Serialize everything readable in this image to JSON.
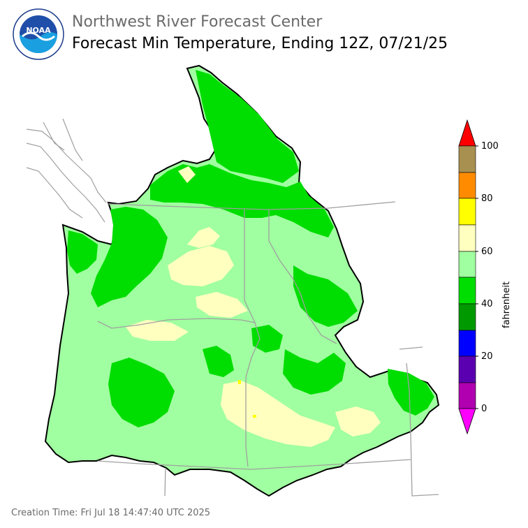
{
  "header": {
    "agency": "Northwest River Forecast Center",
    "product": "Forecast Min Temperature, Ending 12Z, 07/21/25"
  },
  "logo": {
    "text": "NOAA",
    "ring_text": "NATIONAL OCEANIC AND ATMOSPHERIC ADMINISTRATION · U.S. DEPARTMENT OF COMMERCE"
  },
  "footer": {
    "creation_time": "Creation Time: Fri Jul 18 14:47:40 UTC 2025"
  },
  "colorbar": {
    "units": "fahrenheit",
    "ticks": [
      "100",
      "80",
      "60",
      "40",
      "20",
      "0"
    ],
    "bins": [
      {
        "range": "above 100",
        "color": "#ff0000"
      },
      {
        "range": "90-100",
        "color": "#a89050"
      },
      {
        "range": "80-90",
        "color": "#ff8c00"
      },
      {
        "range": "70-80",
        "color": "#ffff00"
      },
      {
        "range": "60-70",
        "color": "#ffffc0"
      },
      {
        "range": "50-60",
        "color": "#a0ff a0"
      },
      {
        "range": "40-50",
        "color": "#00dd00"
      },
      {
        "range": "30-40",
        "color": "#009900"
      },
      {
        "range": "20-30",
        "color": "#0000ff"
      },
      {
        "range": "10-20",
        "color": "#5a00b0"
      },
      {
        "range": "0-10",
        "color": "#b000b0"
      },
      {
        "range": "below 0",
        "color": "#ff00ff"
      }
    ]
  },
  "map": {
    "colors": {
      "warm_50_60": "#a0ffa0",
      "mild_60_70": "#ffffc0",
      "cool_40_50": "#00dd00",
      "cold_30_40": "#009900",
      "hot_70_80": "#ffff00",
      "borders": "#a0a0a0",
      "basin_outline": "#000000"
    }
  }
}
